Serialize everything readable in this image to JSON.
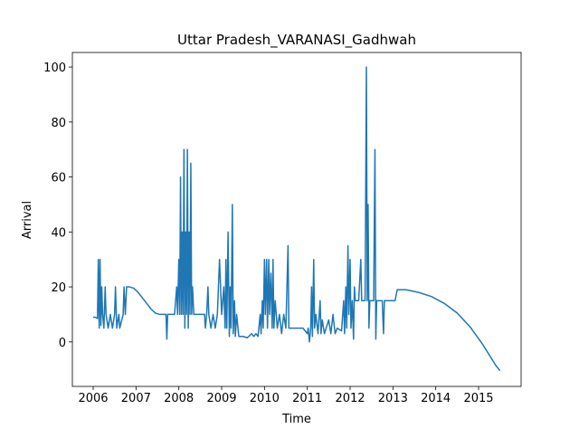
{
  "chart_data": {
    "type": "line",
    "title": "Uttar Pradesh_VARANASI_Gadhwah",
    "x_label": "Time",
    "y_label": "Arrival",
    "x": [
      2006.0,
      2006.05,
      2006.1,
      2006.12,
      2006.14,
      2006.16,
      2006.18,
      2006.2,
      2006.22,
      2006.25,
      2006.28,
      2006.3,
      2006.35,
      2006.4,
      2006.45,
      2006.5,
      2006.52,
      2006.55,
      2006.6,
      2006.62,
      2006.7,
      2006.72,
      2006.75,
      2006.78,
      2006.85,
      2006.95,
      2007.05,
      2007.15,
      2007.25,
      2007.35,
      2007.45,
      2007.55,
      2007.7,
      2007.72,
      2007.74,
      2007.9,
      2007.95,
      2007.97,
      2008.0,
      2008.02,
      2008.04,
      2008.06,
      2008.08,
      2008.1,
      2008.12,
      2008.14,
      2008.16,
      2008.18,
      2008.2,
      2008.22,
      2008.24,
      2008.26,
      2008.28,
      2008.3,
      2008.32,
      2008.35,
      2008.6,
      2008.62,
      2008.65,
      2008.68,
      2008.7,
      2008.75,
      2008.8,
      2008.85,
      2008.9,
      2008.95,
      2009.0,
      2009.05,
      2009.08,
      2009.1,
      2009.12,
      2009.15,
      2009.18,
      2009.2,
      2009.22,
      2009.25,
      2009.27,
      2009.3,
      2009.32,
      2009.35,
      2009.4,
      2009.5,
      2009.6,
      2009.7,
      2009.75,
      2009.8,
      2009.85,
      2009.9,
      2009.92,
      2009.95,
      2009.97,
      2010.0,
      2010.02,
      2010.05,
      2010.07,
      2010.1,
      2010.12,
      2010.15,
      2010.18,
      2010.2,
      2010.22,
      2010.25,
      2010.3,
      2010.35,
      2010.4,
      2010.45,
      2010.5,
      2010.55,
      2010.57,
      2010.6,
      2010.9,
      2011.0,
      2011.02,
      2011.05,
      2011.08,
      2011.1,
      2011.12,
      2011.15,
      2011.17,
      2011.2,
      2011.25,
      2011.3,
      2011.32,
      2011.35,
      2011.4,
      2011.5,
      2011.55,
      2011.6,
      2011.65,
      2011.7,
      2011.8,
      2011.85,
      2011.87,
      2011.9,
      2011.92,
      2011.95,
      2011.97,
      2012.0,
      2012.02,
      2012.05,
      2012.08,
      2012.1,
      2012.12,
      2012.2,
      2012.25,
      2012.27,
      2012.3,
      2012.35,
      2012.38,
      2012.4,
      2012.42,
      2012.44,
      2012.46,
      2012.55,
      2012.58,
      2012.6,
      2012.62,
      2012.75,
      2012.78,
      2012.8,
      2013.05,
      2013.1,
      2013.3,
      2013.6,
      2013.9,
      2014.2,
      2014.5,
      2014.8,
      2015.1,
      2015.4,
      2015.5
    ],
    "series": [
      {
        "color": "#1f77b4",
        "values": [
          9,
          9,
          8.5,
          30,
          5,
          30,
          6,
          20,
          10,
          5,
          20,
          10,
          5,
          10,
          5,
          10,
          20,
          5,
          10,
          5,
          10,
          20,
          10,
          20,
          20,
          19.5,
          18,
          16,
          14,
          12,
          10.5,
          10,
          10,
          1,
          10,
          10,
          20,
          10,
          30,
          10,
          60,
          10,
          40,
          10,
          70,
          5,
          40,
          10,
          70,
          5,
          40,
          10,
          65,
          10,
          20,
          10,
          10,
          5,
          10,
          20,
          10,
          5,
          10,
          5,
          10,
          30,
          10,
          20,
          5,
          30,
          5,
          40,
          2,
          20,
          5,
          50,
          3,
          15,
          2,
          10,
          2,
          2,
          1.5,
          3,
          2,
          3,
          2,
          10,
          3,
          15,
          5,
          30,
          10,
          30,
          5,
          30,
          10,
          25,
          5,
          30,
          5,
          15,
          5,
          10,
          3,
          10,
          5,
          35,
          5,
          5,
          5,
          3,
          5,
          0,
          5,
          20,
          2,
          30,
          5,
          10,
          3,
          15,
          3,
          8,
          3,
          8,
          3,
          10,
          3,
          5,
          4,
          15,
          3,
          20,
          5,
          35,
          10,
          30,
          5,
          15,
          1,
          20,
          15,
          15,
          30,
          15,
          15,
          15,
          100,
          15,
          50,
          5,
          15,
          15,
          70,
          1,
          15,
          15,
          3,
          15,
          15,
          19,
          19,
          18,
          16.5,
          14,
          10.5,
          5.5,
          -1,
          -8.5,
          -10.5
        ]
      }
    ],
    "xlim": [
      2005.514,
      2015.993
    ],
    "ylim": [
      -16.2,
      105.3
    ],
    "xticks": [
      2006,
      2007,
      2008,
      2009,
      2010,
      2011,
      2012,
      2013,
      2014,
      2015
    ],
    "yticks": [
      0,
      20,
      40,
      60,
      80,
      100
    ]
  }
}
